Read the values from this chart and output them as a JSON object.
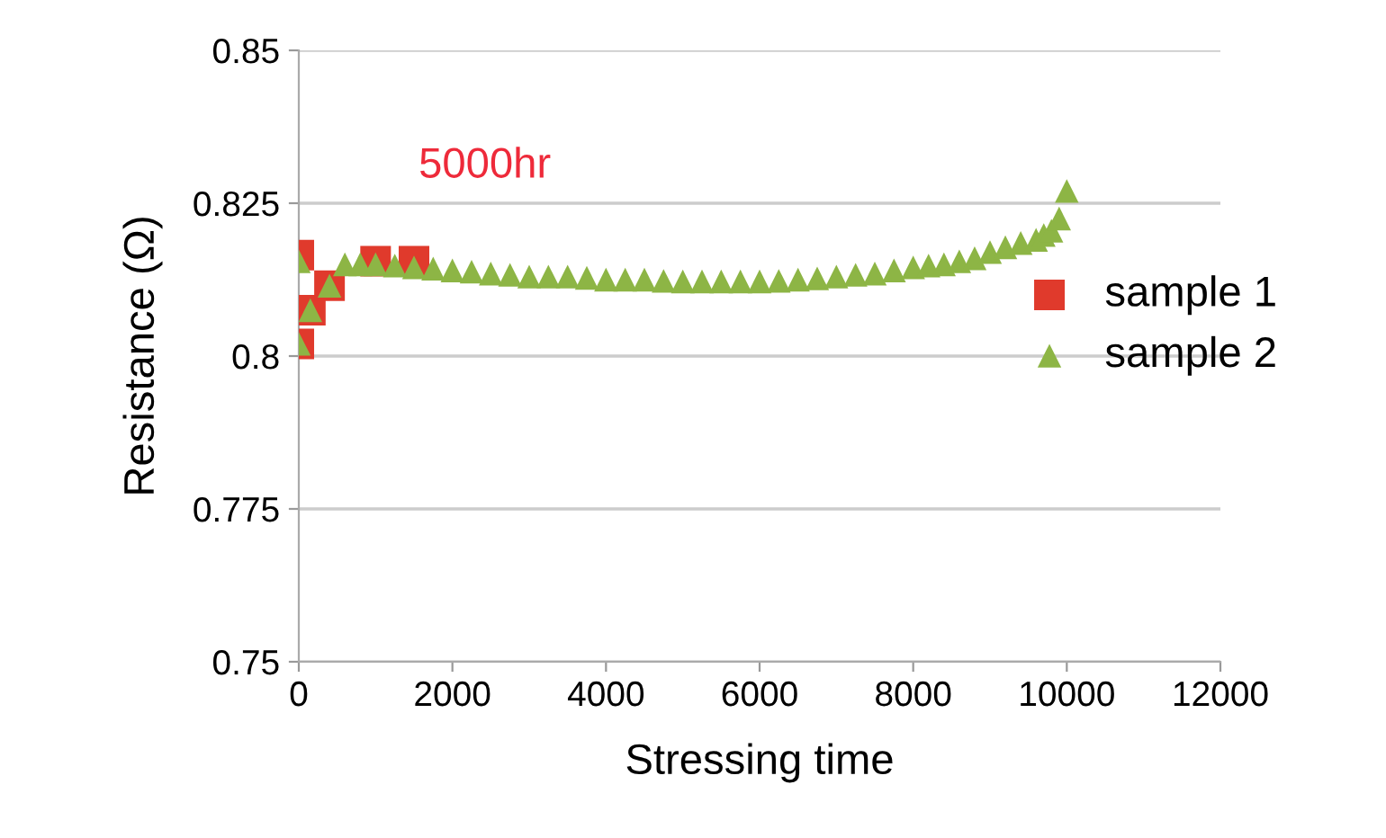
{
  "chart_data": {
    "type": "scatter",
    "xlabel": "Stressing time",
    "ylabel": "Resistance (Ω)",
    "annotations": [
      "5000hr"
    ],
    "series": [
      {
        "name": "sample 1",
        "color": "#e03a2c",
        "marker": "square",
        "x": [
          0,
          0,
          150,
          400,
          1000,
          1500
        ],
        "values": [
          0.8165,
          0.802,
          0.8075,
          0.8115,
          0.8155,
          0.8155
        ]
      },
      {
        "name": "sample 2",
        "color": "#8db545",
        "marker": "triangle",
        "x": [
          0,
          0,
          150,
          400,
          600,
          800,
          1000,
          1250,
          1500,
          1750,
          2000,
          2250,
          2500,
          2750,
          3000,
          3250,
          3500,
          3750,
          4000,
          4250,
          4500,
          4750,
          5000,
          5250,
          5500,
          5750,
          6000,
          6250,
          6500,
          6750,
          7000,
          7250,
          7500,
          7750,
          8000,
          8200,
          8400,
          8600,
          8800,
          9000,
          9200,
          9400,
          9600,
          9700,
          9800,
          9900,
          10000
        ],
        "values": [
          0.802,
          0.8155,
          0.8075,
          0.8115,
          0.815,
          0.815,
          0.815,
          0.8148,
          0.8145,
          0.8143,
          0.814,
          0.8138,
          0.8135,
          0.8133,
          0.813,
          0.813,
          0.813,
          0.8128,
          0.8125,
          0.8125,
          0.8125,
          0.8123,
          0.8122,
          0.8122,
          0.8122,
          0.8122,
          0.8122,
          0.8123,
          0.8125,
          0.8127,
          0.813,
          0.8133,
          0.8135,
          0.814,
          0.8145,
          0.8148,
          0.815,
          0.8155,
          0.816,
          0.817,
          0.8178,
          0.8185,
          0.819,
          0.8198,
          0.8205,
          0.8225,
          0.827
        ]
      }
    ],
    "xlim": [
      0,
      12000
    ],
    "xticks": [
      0,
      2000,
      4000,
      6000,
      8000,
      10000,
      12000
    ],
    "ylim": [
      0.75,
      0.85
    ],
    "yticks": [
      0.75,
      0.775,
      0.8,
      0.825,
      0.85
    ],
    "grid": "y",
    "legend": "right"
  }
}
